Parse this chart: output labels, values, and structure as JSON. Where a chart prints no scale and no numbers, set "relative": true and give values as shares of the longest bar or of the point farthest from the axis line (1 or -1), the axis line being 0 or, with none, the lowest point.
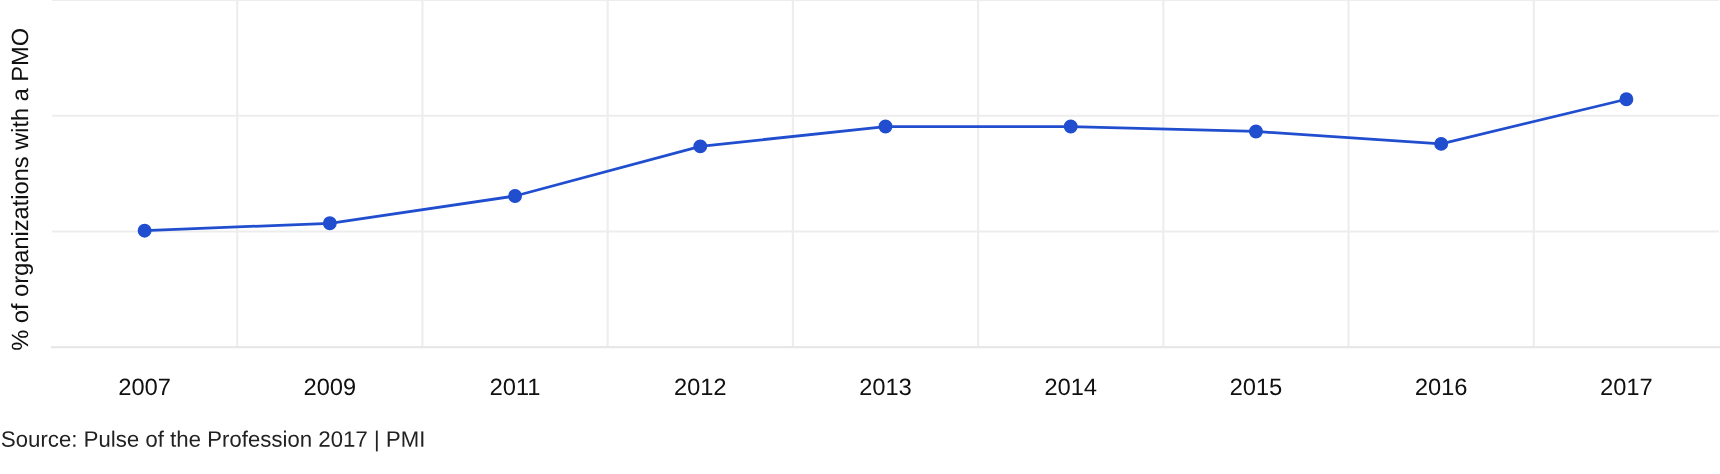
{
  "chart_data": {
    "type": "line",
    "ylabel": "% of organizations with a PMO",
    "categories": [
      "2007",
      "2009",
      "2011",
      "2012",
      "2013",
      "2014",
      "2015",
      "2016",
      "2017"
    ],
    "series": [
      {
        "color": "#204ecf",
        "values": [
          0.47,
          0.5,
          0.61,
          0.81,
          0.89,
          0.89,
          0.87,
          0.82,
          1
        ]
      }
    ],
    "relative": true,
    "grid": true,
    "marker": "circle",
    "line_style": "solid",
    "annotations": [
      "Source: Pulse of the Profession 2017 | PMI"
    ]
  }
}
